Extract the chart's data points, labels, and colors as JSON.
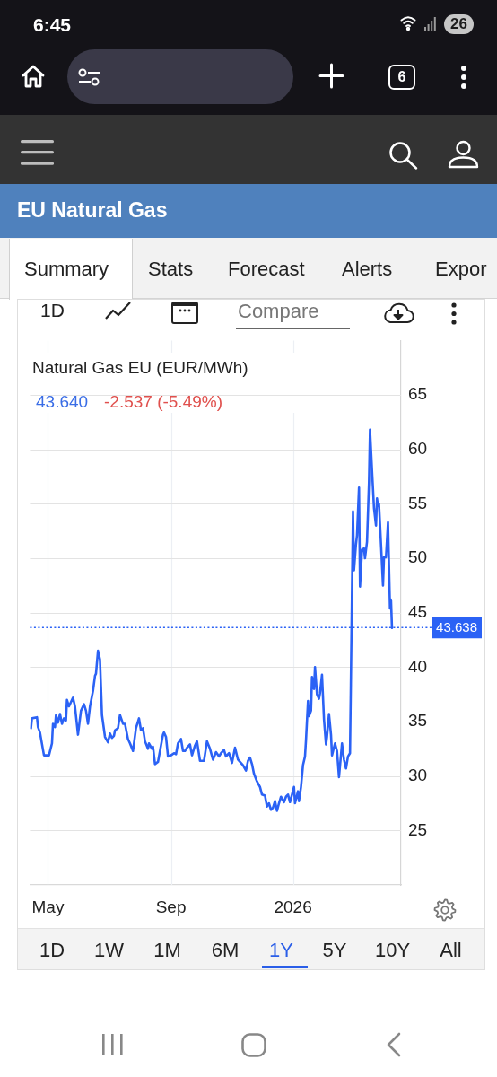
{
  "chart_data": {
    "type": "line",
    "title": "EU Natural Gas",
    "subtitle": "Natural Gas EU (EUR/MWh)",
    "x": [
      "2025-04-14",
      "2025-04-15",
      "2025-04-20",
      "2025-04-21",
      "2025-04-23",
      "2025-04-27",
      "2025-05-02",
      "2025-05-05",
      "2025-05-06",
      "2025-05-08",
      "2025-05-09",
      "2025-05-11",
      "2025-05-13",
      "2025-05-15",
      "2025-05-17",
      "2025-05-19",
      "2025-05-20",
      "2025-05-22",
      "2025-05-26",
      "2025-05-28",
      "2025-05-31",
      "2025-06-03",
      "2025-06-06",
      "2025-06-08",
      "2025-06-10",
      "2025-06-12",
      "2025-06-15",
      "2025-06-17",
      "2025-06-18",
      "2025-06-20",
      "2025-06-22",
      "2025-06-24",
      "2025-06-27",
      "2025-06-30",
      "2025-07-02",
      "2025-07-04",
      "2025-07-06",
      "2025-07-07",
      "2025-07-10",
      "2025-07-12",
      "2025-07-15",
      "2025-07-17",
      "2025-07-20",
      "2025-07-22",
      "2025-07-25",
      "2025-07-28",
      "2025-07-31",
      "2025-08-02",
      "2025-08-04",
      "2025-08-06",
      "2025-08-09",
      "2025-08-10",
      "2025-08-13",
      "2025-08-14",
      "2025-08-16",
      "2025-08-19",
      "2025-08-21",
      "2025-08-24",
      "2025-08-25",
      "2025-08-27",
      "2025-08-29",
      "2025-09-01",
      "2025-09-04",
      "2025-09-06",
      "2025-09-08",
      "2025-09-11",
      "2025-09-13",
      "2025-09-15",
      "2025-09-17",
      "2025-09-20",
      "2025-09-22",
      "2025-09-25",
      "2025-09-27",
      "2025-09-30",
      "2025-10-04",
      "2025-10-07",
      "2025-10-10",
      "2025-10-13",
      "2025-10-16",
      "2025-10-19",
      "2025-10-21",
      "2025-10-24",
      "2025-10-26",
      "2025-10-29",
      "2025-11-01",
      "2025-11-04",
      "2025-11-07",
      "2025-11-10",
      "2025-11-12",
      "2025-11-15",
      "2025-11-17",
      "2025-11-19",
      "2025-11-21",
      "2025-11-23",
      "2025-11-26",
      "2025-11-29",
      "2025-12-01",
      "2025-12-04",
      "2025-12-06",
      "2025-12-08",
      "2025-12-10",
      "2025-12-12",
      "2025-12-14",
      "2025-12-16",
      "2025-12-18",
      "2025-12-20",
      "2025-12-23",
      "2025-12-25",
      "2025-12-27",
      "2025-12-29",
      "2025-12-31",
      "2026-01-02",
      "2026-01-03",
      "2026-01-06",
      "2026-01-07",
      "2026-01-09",
      "2026-01-11",
      "2026-01-13",
      "2026-01-14",
      "2026-01-16",
      "2026-01-17",
      "2026-01-19",
      "2026-01-20",
      "2026-01-22",
      "2026-01-23",
      "2026-01-25",
      "2026-01-27",
      "2026-01-28",
      "2026-01-30",
      "2026-02-01",
      "2026-02-03",
      "2026-02-04",
      "2026-02-06",
      "2026-02-08",
      "2026-02-09",
      "2026-02-12",
      "2026-02-14",
      "2026-02-16",
      "2026-02-19",
      "2026-02-21",
      "2026-02-23",
      "2026-02-25",
      "2026-02-27",
      "2026-03-02",
      "2026-03-03",
      "2026-03-05",
      "2026-03-06",
      "2026-03-08",
      "2026-03-09",
      "2026-03-11",
      "2026-03-13",
      "2026-03-14",
      "2026-03-16",
      "2026-03-18",
      "2026-03-19",
      "2026-03-21",
      "2026-03-23",
      "2026-03-25",
      "2026-03-26",
      "2026-03-27",
      "2026-03-28",
      "2026-03-30",
      "2026-04-01",
      "2026-04-02",
      "2026-04-04",
      "2026-04-06",
      "2026-04-08",
      "2026-04-09",
      "2026-04-10"
    ],
    "values": [
      34.4,
      35.3,
      35.4,
      34.5,
      34.0,
      31.9,
      31.9,
      33.0,
      34.8,
      34.5,
      35.6,
      34.9,
      35.7,
      34.8,
      35.3,
      35.1,
      37.0,
      36.4,
      37.2,
      36.4,
      33.8,
      36.0,
      36.6,
      36.0,
      34.8,
      36.4,
      37.8,
      39.2,
      39.4,
      41.5,
      40.7,
      35.6,
      33.6,
      33.1,
      33.9,
      33.5,
      33.7,
      34.2,
      34.4,
      35.6,
      34.8,
      34.8,
      33.4,
      33.0,
      32.3,
      34.4,
      35.3,
      34.2,
      34.4,
      33.2,
      32.5,
      33.0,
      32.5,
      32.7,
      31.1,
      31.3,
      32.3,
      33.8,
      34.0,
      33.6,
      31.8,
      31.9,
      32.1,
      32.0,
      33.0,
      33.4,
      32.3,
      32.3,
      32.6,
      32.9,
      31.9,
      32.8,
      33.2,
      31.4,
      31.4,
      33.2,
      32.5,
      31.5,
      32.2,
      31.8,
      32.1,
      32.4,
      31.8,
      32.1,
      31.2,
      32.6,
      31.5,
      31.2,
      31.0,
      30.5,
      31.4,
      31.7,
      31.1,
      30.2,
      29.5,
      29.0,
      28.3,
      28.2,
      27.2,
      27.5,
      26.9,
      27.1,
      27.7,
      26.8,
      27.5,
      28.1,
      27.6,
      28.1,
      28.3,
      27.6,
      28.3,
      29.0,
      27.5,
      28.6,
      27.7,
      29.0,
      31.0,
      31.8,
      33.3,
      36.9,
      35.5,
      36.0,
      39.1,
      38.0,
      40.0,
      37.5,
      37.1,
      37.6,
      39.3,
      35.2,
      32.9,
      33.6,
      35.7,
      33.8,
      31.9,
      33.0,
      32.3,
      29.9,
      33.0,
      31.5,
      30.7,
      31.8,
      32.1,
      54.3,
      48.9,
      51.3,
      52.1,
      56.5,
      47.4,
      50.8,
      50.9,
      50.0,
      51.5,
      57.0,
      61.8,
      58.1,
      54.6,
      53.0,
      55.5,
      54.8,
      55.0,
      51.3,
      47.5,
      50.1,
      50.1,
      53.3,
      45.4,
      46.2,
      43.6
    ],
    "color": "#2b62f5",
    "xlim": [
      "2025-04-13",
      "2026-04-19"
    ],
    "xticks": [
      {
        "value": "2025-05-01",
        "label": "May"
      },
      {
        "value": "2025-09-01",
        "label": "Sep"
      },
      {
        "value": "2026-01-01",
        "label": "2026"
      }
    ],
    "ylim": [
      20,
      70
    ],
    "yticks": [
      25,
      30,
      35,
      40,
      45,
      50,
      55,
      60,
      65
    ],
    "grid": true,
    "ref_lines": [
      {
        "axis": "y",
        "value": 43.638,
        "label": "43.638",
        "color": "#2b62f5",
        "line_style": "dotted"
      }
    ],
    "annotations": [
      "6:45",
      "26",
      "6",
      "Summary",
      "Stats",
      "Forecast",
      "Alerts",
      "Expor",
      "1D",
      "Compare",
      "43.640",
      "-2.537 (-5.49%)",
      "1D",
      "1W",
      "1M",
      "6M",
      "1Y",
      "5Y",
      "10Y",
      "All"
    ]
  }
}
